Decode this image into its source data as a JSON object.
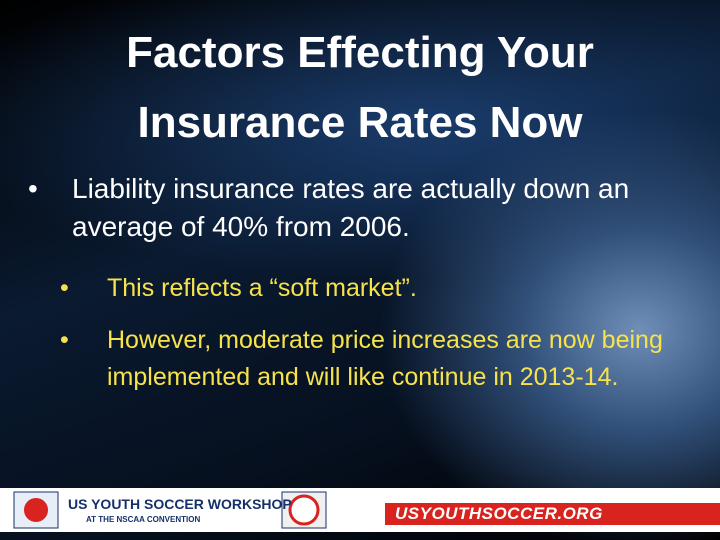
{
  "title": {
    "lines": [
      "Factors Effecting Your",
      "Insurance Rates Now"
    ]
  },
  "bullets": [
    {
      "text": "Liability insurance rates are actually down an average of 40% from 2006.",
      "sub_bullets": [
        "This reflects a “soft market”.",
        "However, moderate price increases are now being implemented and will like continue in 2013-14."
      ]
    }
  ],
  "footer": {
    "workshop": "US YOUTH SOCCER WORKSHOP",
    "convention": "AT THE NSCAA CONVENTION",
    "website": "USYOUTHSOCCER.ORG"
  }
}
